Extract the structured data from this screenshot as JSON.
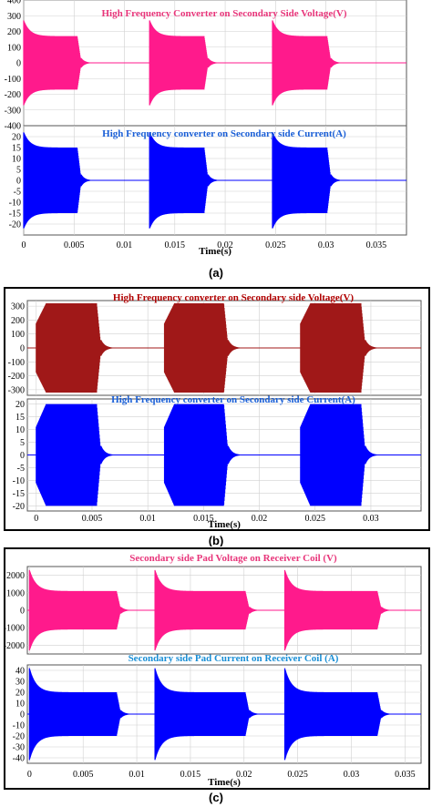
{
  "captions": [
    "(a)",
    "(b)",
    "(c)"
  ],
  "chart_data": [
    {
      "type": "line",
      "panel": "a",
      "xlabel": "Time(s)",
      "xlim": [
        0,
        0.038
      ],
      "xticks": [
        "0",
        "0.005",
        "0.01",
        "0.015",
        "0.02",
        "0.025",
        "0.03",
        "0.035"
      ],
      "xtick_values": [
        0,
        0.005,
        0.01,
        0.015,
        0.02,
        0.025,
        0.03,
        0.035
      ],
      "subplots": [
        {
          "title": "High Frequency Converter on  Secondary Side Voltage(V)",
          "title_color": "#e8357a",
          "ylim": [
            -400,
            400
          ],
          "yticks": [
            "400",
            "300",
            "200",
            "100",
            "0",
            "-100",
            "-200",
            "-300",
            "-400"
          ],
          "ytick_values": [
            400,
            300,
            200,
            100,
            0,
            -100,
            -200,
            -300,
            -400
          ],
          "series": [
            {
              "color": "#ff1a8c",
              "bursts": [
                [
                  0,
                  0.0057
                ],
                [
                  0.0125,
                  0.0183
                ],
                [
                  0.0247,
                  0.0305
                ]
              ],
              "peak": 270,
              "plateau": 170
            }
          ]
        },
        {
          "title": "High Frequency converter on Secondary side  Current(A)",
          "title_color": "#1a5fd6",
          "ylim": [
            -25,
            25
          ],
          "yticks": [
            "20",
            "15",
            "10",
            "5",
            "0",
            "-5",
            "-10",
            "-15",
            "-20"
          ],
          "ytick_values": [
            20,
            15,
            10,
            5,
            0,
            -5,
            -10,
            -15,
            -20
          ],
          "series": [
            {
              "color": "#0000ff",
              "bursts": [
                [
                  0,
                  0.0057
                ],
                [
                  0.0125,
                  0.0183
                ],
                [
                  0.0247,
                  0.0305
                ]
              ],
              "peak": 22,
              "plateau": 15
            }
          ]
        }
      ]
    },
    {
      "type": "line",
      "panel": "b",
      "xlabel": "Time(s)",
      "xlim": [
        -0.0008,
        0.0345
      ],
      "xticks": [
        "0",
        "0.005",
        "0.01",
        "0.015",
        "0.02",
        "0.025",
        "0.03"
      ],
      "xtick_values": [
        0,
        0.005,
        0.01,
        0.015,
        0.02,
        0.025,
        0.03
      ],
      "subplots": [
        {
          "title": "High Frequency converter on  Secondary side Voltage(V)",
          "title_color": "#b00000",
          "ylim": [
            -340,
            340
          ],
          "yticks": [
            "300",
            "200",
            "100",
            "0",
            "-100",
            "-200",
            "-300"
          ],
          "ytick_values": [
            300,
            200,
            100,
            0,
            -100,
            -200,
            -300
          ],
          "series": [
            {
              "color": "#a01818",
              "bursts": [
                [
                  0,
                  0.0058
                ],
                [
                  0.0115,
                  0.0172
                ],
                [
                  0.0237,
                  0.0295
                ]
              ],
              "peak": 320,
              "plateau": 320
            }
          ]
        },
        {
          "title": "High Frequency converter on Secondary side  Current(A)",
          "title_color": "#1a5fd6",
          "ylim": [
            -22,
            22
          ],
          "yticks": [
            "20",
            "15",
            "10",
            "5",
            "0",
            "-5",
            "-10",
            "-15",
            "-20"
          ],
          "ytick_values": [
            20,
            15,
            10,
            5,
            0,
            -5,
            -10,
            -15,
            -20
          ],
          "series": [
            {
              "color": "#0000ff",
              "bursts": [
                [
                  0,
                  0.0058
                ],
                [
                  0.0115,
                  0.0172
                ],
                [
                  0.0237,
                  0.0295
                ]
              ],
              "peak": 20,
              "plateau": 20
            }
          ]
        }
      ]
    },
    {
      "type": "line",
      "panel": "c",
      "xlabel": "Time(s)",
      "xlim": [
        -0.0002,
        0.0365
      ],
      "xticks": [
        "0",
        "0.005",
        "0.01",
        "0.015",
        "0.02",
        "0.025",
        "0.03",
        "0.035"
      ],
      "xtick_values": [
        0,
        0.005,
        0.01,
        0.015,
        0.02,
        0.025,
        0.03,
        0.035
      ],
      "subplots": [
        {
          "title": "Secondary side Pad Voltage on Receiver Coil (V)",
          "title_color": "#e8357a",
          "ylim": [
            -2500,
            2500
          ],
          "yticks": [
            "2000",
            "1000",
            "0",
            "-1000",
            "-2000"
          ],
          "ytick_values": [
            2000,
            1000,
            0,
            -1000,
            -2000
          ],
          "series": [
            {
              "color": "#ff1a8c",
              "bursts": [
                [
                  0,
                  0.0085
                ],
                [
                  0.0117,
                  0.0205
                ],
                [
                  0.0238,
                  0.0328
                ]
              ],
              "peak": 2300,
              "plateau": 1100
            }
          ]
        },
        {
          "title": "Secondary side Pad Current on Receiver Coil (A)",
          "title_color": "#1a8fd6",
          "ylim": [
            -45,
            45
          ],
          "yticks": [
            "40",
            "30",
            "20",
            "10",
            "0",
            "-10",
            "-20",
            "-30",
            "-40"
          ],
          "ytick_values": [
            40,
            30,
            20,
            10,
            0,
            -10,
            -20,
            -30,
            -40
          ],
          "series": [
            {
              "color": "#0000ff",
              "bursts": [
                [
                  0,
                  0.0085
                ],
                [
                  0.0117,
                  0.0205
                ],
                [
                  0.0238,
                  0.0328
                ]
              ],
              "peak": 42,
              "plateau": 20
            }
          ]
        }
      ]
    }
  ]
}
